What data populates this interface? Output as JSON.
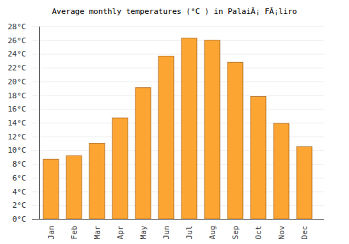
{
  "chart_data": {
    "type": "bar",
    "title": "Average monthly temperatures (°C ) in PalaiÃ¡ FÃ¡liro",
    "categories": [
      "Jan",
      "Feb",
      "Mar",
      "Apr",
      "May",
      "Jun",
      "Jul",
      "Aug",
      "Sep",
      "Oct",
      "Nov",
      "Dec"
    ],
    "values": [
      8.7,
      9.2,
      11.0,
      14.7,
      19.1,
      23.7,
      26.3,
      26.0,
      22.8,
      17.8,
      13.9,
      10.5
    ],
    "color": "#fca532",
    "ylim": [
      0,
      28
    ],
    "yticks": [
      {
        "value": 0,
        "label": "0°C"
      },
      {
        "value": 2,
        "label": "2°C"
      },
      {
        "value": 4,
        "label": "4°C"
      },
      {
        "value": 6,
        "label": "6°C"
      },
      {
        "value": 8,
        "label": "8°C"
      },
      {
        "value": 10,
        "label": "10°C"
      },
      {
        "value": 12,
        "label": "12°C"
      },
      {
        "value": 14,
        "label": "14°C"
      },
      {
        "value": 16,
        "label": "16°C"
      },
      {
        "value": 18,
        "label": "18°C"
      },
      {
        "value": 20,
        "label": "20°C"
      },
      {
        "value": 22,
        "label": "22°C"
      },
      {
        "value": 24,
        "label": "24°C"
      },
      {
        "value": 26,
        "label": "26°C"
      },
      {
        "value": 28,
        "label": "28°C"
      }
    ],
    "grid": true
  }
}
